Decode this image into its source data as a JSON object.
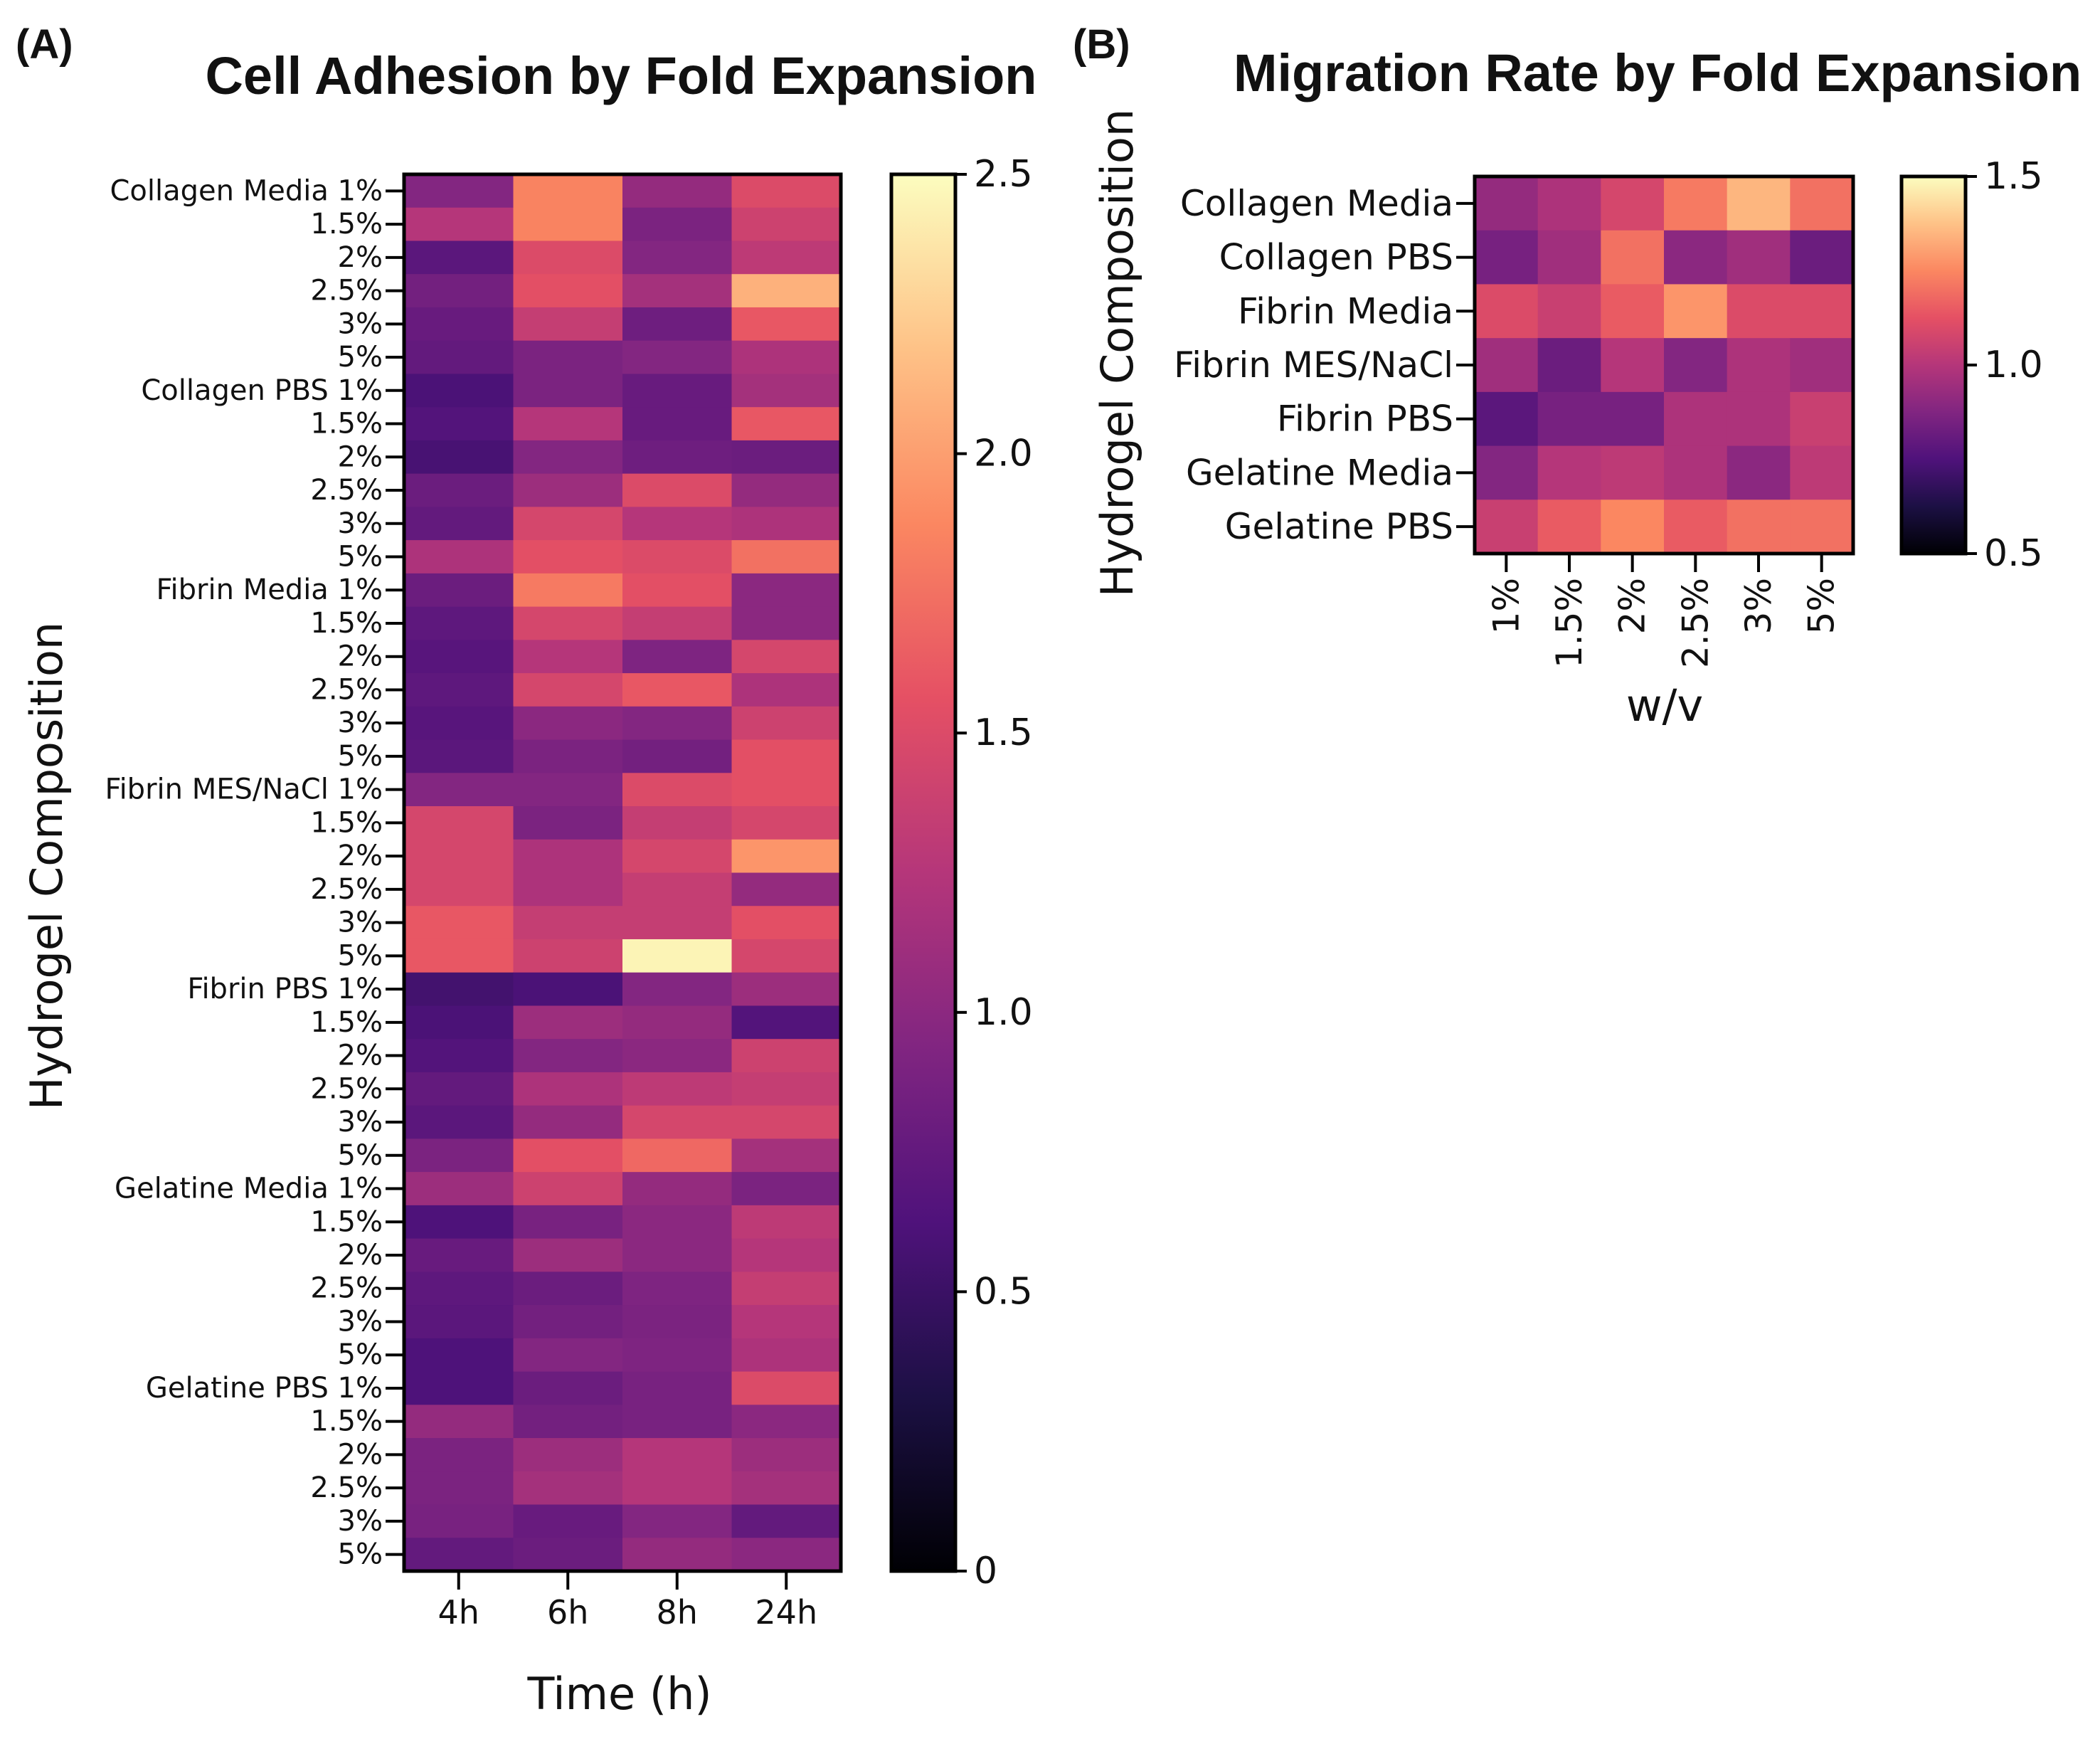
{
  "chart_data": [
    {
      "panel": "(A)",
      "type": "heatmap",
      "title": "Cell Adhesion by Fold Expansion",
      "xlabel": "Time (h)",
      "ylabel": "Hydrogel Composition",
      "x_categories": [
        "4h",
        "6h",
        "8h",
        "24h"
      ],
      "y_categories": [
        "Collagen Media 1%",
        "1.5%",
        "2%",
        "2.5%",
        "3%",
        "5%",
        "Collagen PBS 1%",
        "1.5%",
        "2%",
        "2.5%",
        "3%",
        "5%",
        "Fibrin Media 1%",
        "1.5%",
        "2%",
        "2.5%",
        "3%",
        "5%",
        "Fibrin MES/NaCl 1%",
        "1.5%",
        "2%",
        "2.5%",
        "3%",
        "5%",
        "Fibrin PBS 1%",
        "1.5%",
        "2%",
        "2.5%",
        "3%",
        "5%",
        "Gelatine Media 1%",
        "1.5%",
        "2%",
        "2.5%",
        "3%",
        "5%",
        "Gelatine PBS 1%",
        "1.5%",
        "2%",
        "2.5%",
        "3%",
        "5%"
      ],
      "values": [
        [
          0.95,
          1.85,
          1.05,
          1.5
        ],
        [
          1.25,
          1.85,
          0.9,
          1.4
        ],
        [
          0.7,
          1.5,
          0.95,
          1.3
        ],
        [
          0.85,
          1.55,
          1.15,
          2.1
        ],
        [
          0.78,
          1.35,
          0.82,
          1.6
        ],
        [
          0.75,
          0.9,
          0.95,
          1.2
        ],
        [
          0.6,
          0.9,
          0.78,
          1.15
        ],
        [
          0.65,
          1.25,
          0.78,
          1.6
        ],
        [
          0.58,
          0.95,
          0.82,
          0.8
        ],
        [
          0.8,
          1.1,
          1.5,
          1.05
        ],
        [
          0.75,
          1.45,
          1.25,
          1.2
        ],
        [
          1.2,
          1.55,
          1.5,
          1.75
        ],
        [
          0.8,
          1.8,
          1.55,
          1.0
        ],
        [
          0.72,
          1.45,
          1.35,
          1.0
        ],
        [
          0.68,
          1.25,
          0.92,
          1.45
        ],
        [
          0.72,
          1.45,
          1.6,
          1.2
        ],
        [
          0.68,
          1.0,
          0.95,
          1.4
        ],
        [
          0.7,
          0.9,
          0.85,
          1.55
        ],
        [
          0.95,
          0.95,
          1.5,
          1.55
        ],
        [
          1.45,
          0.9,
          1.35,
          1.45
        ],
        [
          1.45,
          1.2,
          1.45,
          1.95
        ],
        [
          1.45,
          1.2,
          1.35,
          1.05
        ],
        [
          1.6,
          1.35,
          1.35,
          1.55
        ],
        [
          1.6,
          1.4,
          2.45,
          1.45
        ],
        [
          0.55,
          0.6,
          0.95,
          1.1
        ],
        [
          0.6,
          1.1,
          1.05,
          0.65
        ],
        [
          0.65,
          0.95,
          1.0,
          1.4
        ],
        [
          0.75,
          1.2,
          1.3,
          1.35
        ],
        [
          0.7,
          1.05,
          1.45,
          1.45
        ],
        [
          0.9,
          1.55,
          1.7,
          1.15
        ],
        [
          1.1,
          1.4,
          1.05,
          0.9
        ],
        [
          0.62,
          0.88,
          1.0,
          1.3
        ],
        [
          0.78,
          1.1,
          1.0,
          1.25
        ],
        [
          0.72,
          0.8,
          0.92,
          1.35
        ],
        [
          0.7,
          0.85,
          0.9,
          1.25
        ],
        [
          0.62,
          0.95,
          0.92,
          1.2
        ],
        [
          0.62,
          0.8,
          0.88,
          1.5
        ],
        [
          1.05,
          0.85,
          0.88,
          1.0
        ],
        [
          0.9,
          1.1,
          1.25,
          1.1
        ],
        [
          0.9,
          1.15,
          1.25,
          1.15
        ],
        [
          0.88,
          0.78,
          0.95,
          0.75
        ],
        [
          0.75,
          0.8,
          1.05,
          1.0
        ]
      ],
      "colorbar": {
        "min": 0,
        "max": 2.5,
        "ticks": [
          "0",
          "0.5",
          "1.0",
          "1.5",
          "2.0",
          "2.5"
        ],
        "colormap": "magma"
      }
    },
    {
      "panel": "(B)",
      "type": "heatmap",
      "title": "Migration Rate by Fold Expansion",
      "xlabel": "w/v",
      "ylabel": "Hydrogel Composition",
      "x_categories": [
        "1%",
        "1.5%",
        "2%",
        "2.5%",
        "3%",
        "5%"
      ],
      "y_categories": [
        "Collagen Media",
        "Collagen PBS",
        "Fibrin Media",
        "Fibrin MES/NaCl",
        "Fibrin PBS",
        "Gelatine Media",
        "Gelatine PBS"
      ],
      "values": [
        [
          0.92,
          0.98,
          1.08,
          1.22,
          1.35,
          1.2
        ],
        [
          0.85,
          0.95,
          1.2,
          0.9,
          0.95,
          0.82
        ],
        [
          1.1,
          1.05,
          1.15,
          1.28,
          1.1,
          1.1
        ],
        [
          0.95,
          0.82,
          1.0,
          0.88,
          0.98,
          0.95
        ],
        [
          0.78,
          0.85,
          0.85,
          0.98,
          0.98,
          1.05
        ],
        [
          0.88,
          1.0,
          1.02,
          0.98,
          0.9,
          1.02
        ],
        [
          1.05,
          1.15,
          1.25,
          1.15,
          1.2,
          1.2
        ]
      ],
      "colorbar": {
        "min": 0.5,
        "max": 1.5,
        "ticks": [
          "0.5",
          "1.0",
          "1.5"
        ],
        "colormap": "magma"
      }
    }
  ]
}
